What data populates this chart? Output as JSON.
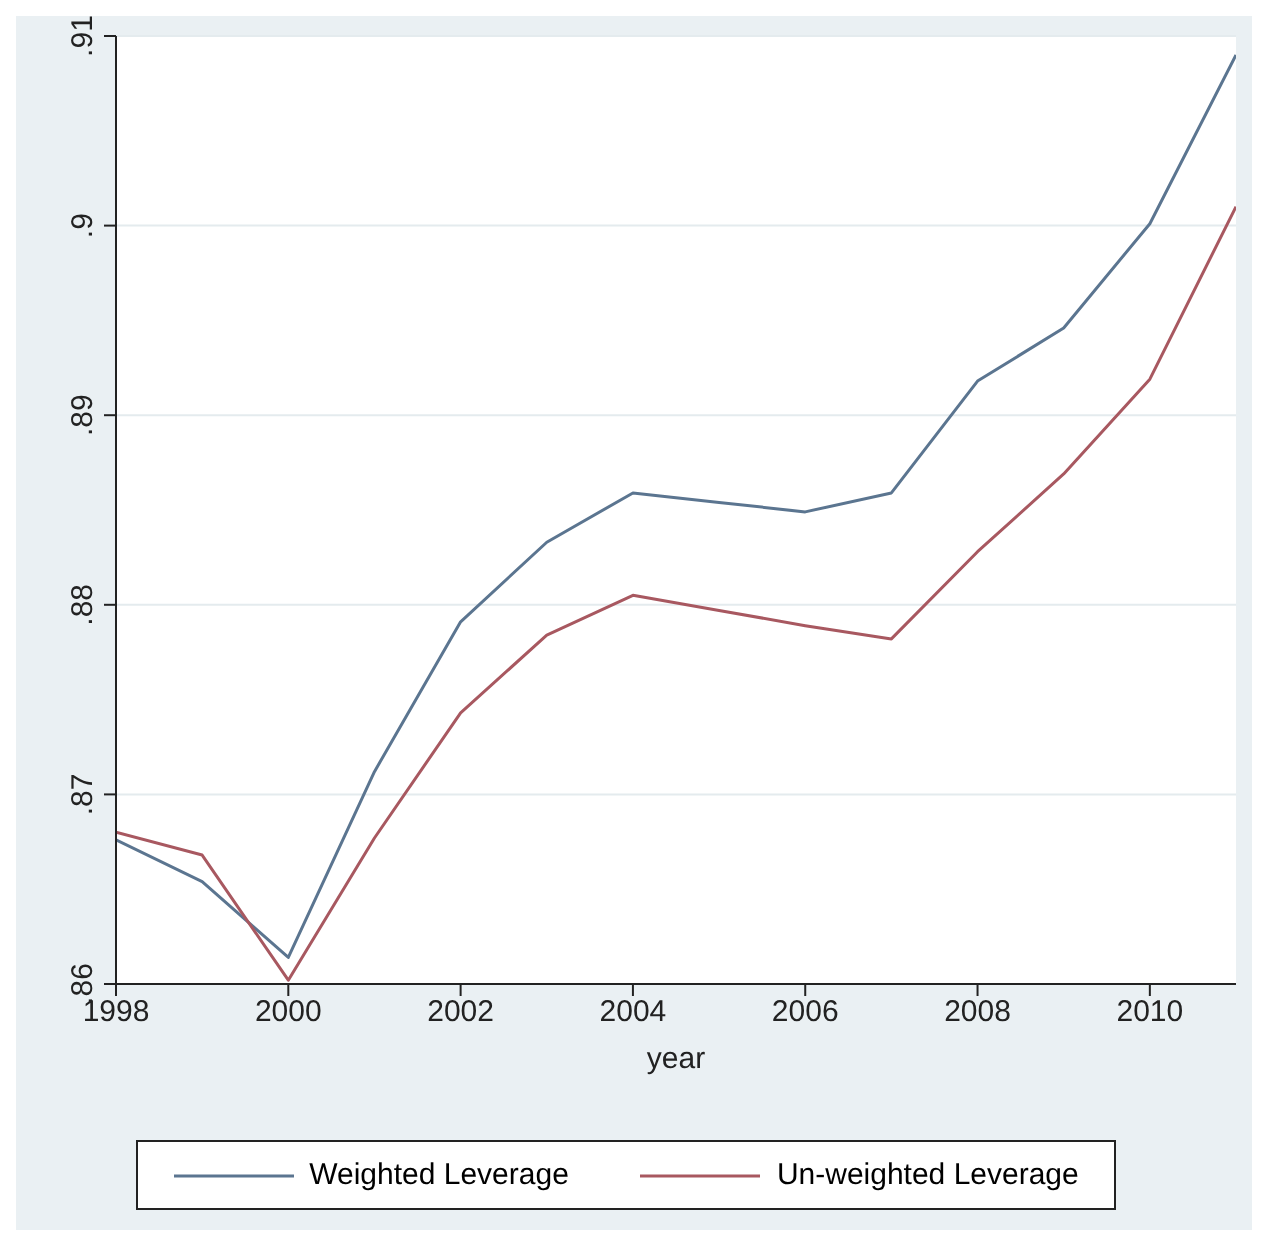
{
  "chart_data": {
    "type": "line",
    "xlabel": "year",
    "x": [
      1998,
      1999,
      2000,
      2001,
      2002,
      2003,
      2004,
      2005,
      2006,
      2007,
      2008,
      2009,
      2010,
      2011
    ],
    "series": [
      {
        "name": "Weighted Leverage",
        "color": "#5b7590",
        "values": [
          0.8676,
          0.8654,
          0.8614,
          0.8712,
          0.8791,
          0.8833,
          0.8859,
          0.8854,
          0.8849,
          0.8859,
          0.8918,
          0.8946,
          0.9001,
          0.909
        ]
      },
      {
        "name": "Un-weighted Leverage",
        "color": "#a85860",
        "values": [
          0.868,
          0.8668,
          0.8602,
          0.8677,
          0.8743,
          0.8784,
          0.8805,
          0.8797,
          0.8789,
          0.8782,
          0.8828,
          0.8869,
          0.8919,
          0.901
        ]
      }
    ],
    "xlim": [
      1998,
      2011
    ],
    "xticks": [
      1998,
      2000,
      2002,
      2004,
      2006,
      2008,
      2010
    ],
    "ylim": [
      0.86,
      0.91
    ],
    "yticks": [
      {
        "value": 0.86,
        "label": ".86"
      },
      {
        "value": 0.87,
        "label": ".87"
      },
      {
        "value": 0.88,
        "label": ".88"
      },
      {
        "value": 0.89,
        "label": ".89"
      },
      {
        "value": 0.9,
        "label": ".9"
      },
      {
        "value": 0.91,
        "label": ".91"
      }
    ],
    "grid": "y",
    "legend": "bottom",
    "marker": "none",
    "line_style": "solid"
  }
}
